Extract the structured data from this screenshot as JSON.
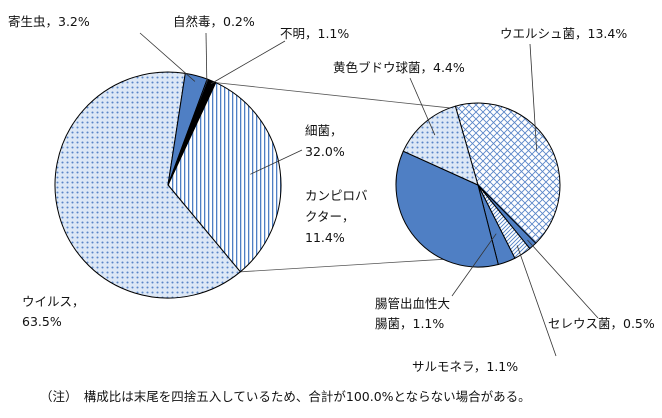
{
  "chart_data": [
    {
      "type": "pie",
      "slices": [
        {
          "key": "virus",
          "label": "ウイルス，",
          "value_text": "63.5%",
          "value": 63.5,
          "pattern": "dots"
        },
        {
          "key": "bacteria",
          "label": "細菌，",
          "value_text": "32.0%",
          "value": 32.0,
          "pattern": "vlines"
        },
        {
          "key": "parasite",
          "label": "寄生虫，",
          "value_text": "3.2%",
          "value": 3.2,
          "pattern": "solid-blue"
        },
        {
          "key": "natural_toxin",
          "label": "自然毒，",
          "value_text": "0.2%",
          "value": 0.2,
          "pattern": "solid-blue"
        },
        {
          "key": "unknown",
          "label": "不明，",
          "value_text": "1.1%",
          "value": 1.1,
          "pattern": "black"
        }
      ]
    },
    {
      "type": "pie",
      "slices": [
        {
          "key": "staph",
          "label": "黄色ブドウ球菌，",
          "value_text": "4.4%",
          "value": 4.4,
          "pattern": "dots"
        },
        {
          "key": "welchii",
          "label": "ウエルシュ菌，",
          "value_text": "13.4%",
          "value": 13.4,
          "pattern": "crosshatch"
        },
        {
          "key": "cereus",
          "label": "セレウス菌，",
          "value_text": "0.5%",
          "value": 0.5,
          "pattern": "solid-blue"
        },
        {
          "key": "salmonella",
          "label": "サルモネラ，",
          "value_text": "1.1%",
          "value": 1.1,
          "pattern": "diag"
        },
        {
          "key": "ehec",
          "label": "腸管出血性大腸菌，",
          "value_text": "1.1%",
          "value": 1.1,
          "pattern": "solid-blue"
        },
        {
          "key": "campylobacter",
          "label": "カンピロバクター，",
          "value_text": "11.4%",
          "value": 11.4,
          "pattern": "solid-blue"
        }
      ]
    }
  ],
  "label_lines": {
    "virus": [
      "ウイルス，",
      "63.5%"
    ],
    "bacteria": [
      "細菌，",
      "32.0%"
    ],
    "parasite": [
      "寄生虫，3.2%"
    ],
    "natural_toxin": [
      "自然毒，0.2%"
    ],
    "unknown": [
      "不明，1.1%"
    ],
    "staph": [
      "黄色ブドウ球菌，4.4%"
    ],
    "welchii": [
      "ウエルシュ菌，13.4%"
    ],
    "cereus": [
      "セレウス菌，0.5%"
    ],
    "salmonella": [
      "サルモネラ，1.1%"
    ],
    "ehec": [
      "腸管出血性大",
      "腸菌，1.1%"
    ],
    "campylobacter": [
      "カンピロバ",
      "クター，",
      "11.4%"
    ]
  },
  "note": "（注）　構成比は末尾を四捨五入しているため、合計が100.0%とならない場合がある。",
  "colors": {
    "blue": "#4f7fc4",
    "light_blue": "#dde8f6",
    "dot": "#5a86c8",
    "line": "#000000"
  }
}
